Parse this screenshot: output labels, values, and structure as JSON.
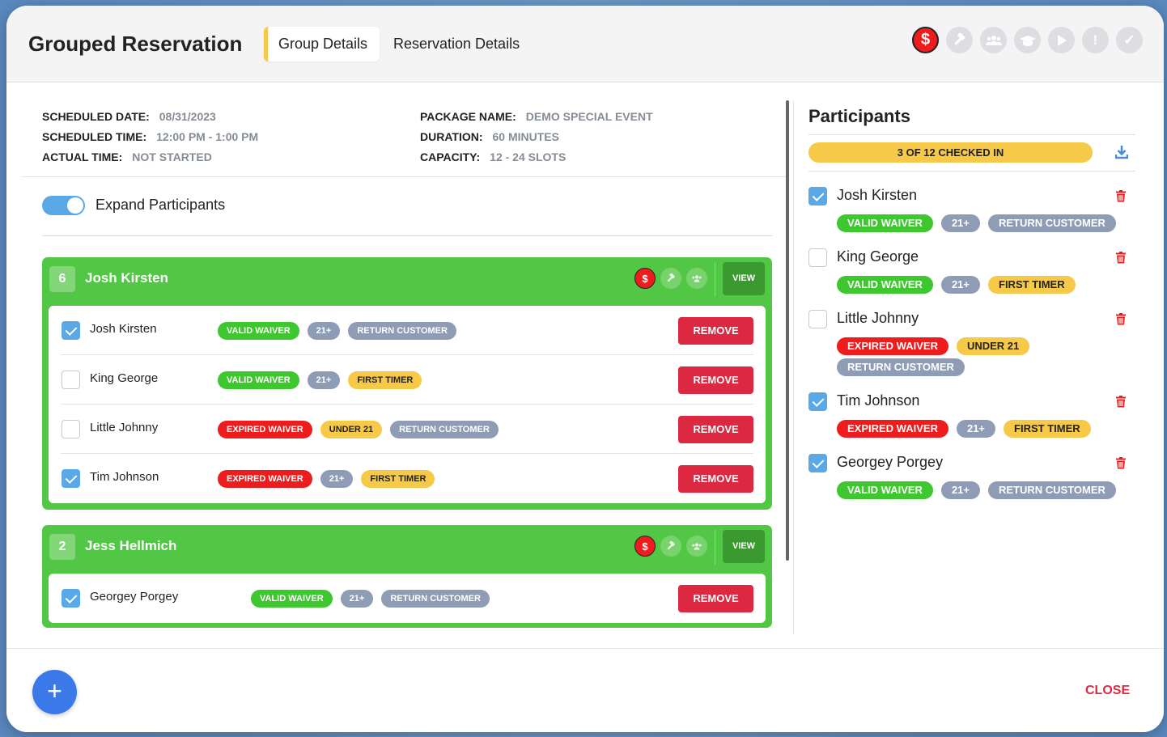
{
  "header": {
    "title": "Grouped Reservation",
    "tabs": [
      {
        "label": "Group Details",
        "active": true
      },
      {
        "label": "Reservation Details",
        "active": false
      }
    ],
    "status_icons": [
      "dollar-icon",
      "hammer-icon",
      "group-icon",
      "graduation-cap-icon",
      "play-icon",
      "alert-icon",
      "check-icon"
    ]
  },
  "info": {
    "scheduled_date_label": "SCHEDULED DATE:",
    "scheduled_date": "08/31/2023",
    "scheduled_time_label": "SCHEDULED TIME:",
    "scheduled_time": "12:00 PM - 1:00 PM",
    "actual_time_label": "ACTUAL TIME:",
    "actual_time": "NOT STARTED",
    "package_name_label": "PACKAGE NAME:",
    "package_name": "DEMO SPECIAL EVENT",
    "duration_label": "DURATION:",
    "duration": "60 MINUTES",
    "capacity_label": "CAPACITY:",
    "capacity": "12 - 24 SLOTS"
  },
  "expand_toggle": {
    "label": "Expand Participants",
    "on": true
  },
  "groups": [
    {
      "count": "6",
      "name": "Josh Kirsten",
      "view_label": "VIEW",
      "dollar_symbol": "$",
      "participants": [
        {
          "name": "Josh Kirsten",
          "checked": true,
          "badges": [
            "VALID WAIVER",
            "21+",
            "RETURN CUSTOMER"
          ],
          "remove_label": "REMOVE"
        },
        {
          "name": "King George",
          "checked": false,
          "badges": [
            "VALID WAIVER",
            "21+",
            "FIRST TIMER"
          ],
          "remove_label": "REMOVE"
        },
        {
          "name": "Little Johnny",
          "checked": false,
          "badges": [
            "EXPIRED WAIVER",
            "UNDER 21",
            "RETURN CUSTOMER"
          ],
          "remove_label": "REMOVE"
        },
        {
          "name": "Tim Johnson",
          "checked": true,
          "badges": [
            "EXPIRED WAIVER",
            "21+",
            "FIRST TIMER"
          ],
          "remove_label": "REMOVE"
        }
      ]
    },
    {
      "count": "2",
      "name": "Jess Hellmich",
      "view_label": "VIEW",
      "dollar_symbol": "$",
      "participants": [
        {
          "name": "Georgey Porgey",
          "checked": true,
          "badges": [
            "VALID WAIVER",
            "21+",
            "RETURN CUSTOMER"
          ],
          "remove_label": "REMOVE"
        }
      ]
    }
  ],
  "participants_panel": {
    "title": "Participants",
    "progress_label": "3 OF 12 CHECKED IN",
    "items": [
      {
        "name": "Josh Kirsten",
        "checked": true,
        "badges": [
          "VALID WAIVER",
          "21+",
          "RETURN CUSTOMER"
        ]
      },
      {
        "name": "King George",
        "checked": false,
        "badges": [
          "VALID WAIVER",
          "21+",
          "FIRST TIMER"
        ]
      },
      {
        "name": "Little Johnny",
        "checked": false,
        "badges": [
          "EXPIRED WAIVER",
          "UNDER 21",
          "RETURN CUSTOMER"
        ]
      },
      {
        "name": "Tim Johnson",
        "checked": true,
        "badges": [
          "EXPIRED WAIVER",
          "21+",
          "FIRST TIMER"
        ]
      },
      {
        "name": "Georgey Porgey",
        "checked": true,
        "badges": [
          "VALID WAIVER",
          "21+",
          "RETURN CUSTOMER"
        ]
      }
    ]
  },
  "footer": {
    "add_symbol": "+",
    "close_label": "CLOSE"
  },
  "colors": {
    "group_green": "#52c745",
    "badge_green": "#3fc72f",
    "badge_red": "#ee1c1c",
    "badge_gray": "#8f9cb5",
    "badge_yellow": "#f7c948",
    "remove_red": "#dc2841",
    "accent_blue": "#5aa8e6",
    "fab_blue": "#3b79e8"
  }
}
